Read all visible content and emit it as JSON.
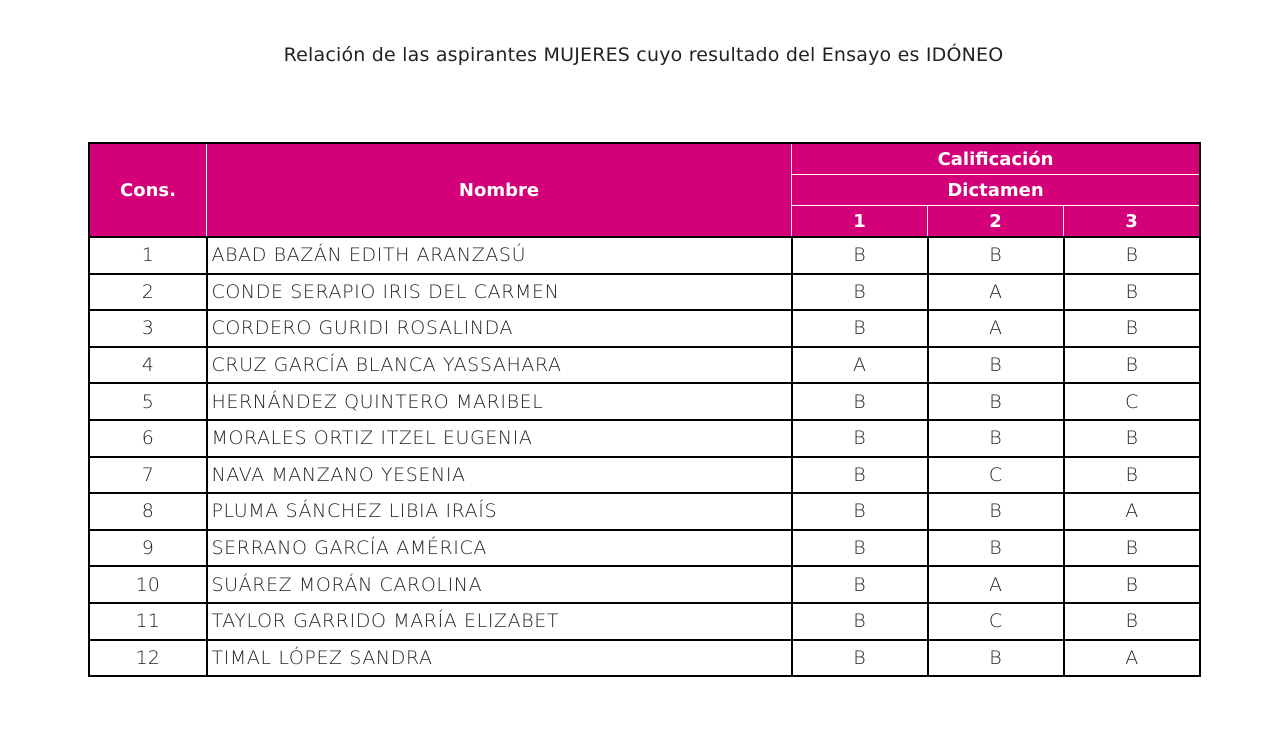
{
  "title": "Relación de las aspirantes MUJERES cuyo resultado del Ensayo es IDÓNEO",
  "header": {
    "cons": "Cons.",
    "nombre": "Nombre",
    "calificacion": "Calificación",
    "dictamen": "Dictamen",
    "cols": [
      "1",
      "2",
      "3"
    ]
  },
  "accent_color": "#d4007a",
  "rows": [
    {
      "cons": "1",
      "nombre": "ABAD BAZÁN EDITH ARANZASÚ",
      "d": [
        "B",
        "B",
        "B"
      ]
    },
    {
      "cons": "2",
      "nombre": "CONDE SERAPIO IRIS DEL CARMEN",
      "d": [
        "B",
        "A",
        "B"
      ]
    },
    {
      "cons": "3",
      "nombre": "CORDERO GURIDI ROSALINDA",
      "d": [
        "B",
        "A",
        "B"
      ]
    },
    {
      "cons": "4",
      "nombre": "CRUZ GARCÍA BLANCA YASSAHARA",
      "d": [
        "A",
        "B",
        "B"
      ]
    },
    {
      "cons": "5",
      "nombre": "HERNÁNDEZ QUINTERO MARIBEL",
      "d": [
        "B",
        "B",
        "C"
      ]
    },
    {
      "cons": "6",
      "nombre": "MORALES ORTIZ ITZEL EUGENIA",
      "d": [
        "B",
        "B",
        "B"
      ]
    },
    {
      "cons": "7",
      "nombre": "NAVA MANZANO YESENIA",
      "d": [
        "B",
        "C",
        "B"
      ]
    },
    {
      "cons": "8",
      "nombre": "PLUMA SÁNCHEZ LIBIA IRAÍS",
      "d": [
        "B",
        "B",
        "A"
      ]
    },
    {
      "cons": "9",
      "nombre": "SERRANO GARCÍA AMÉRICA",
      "d": [
        "B",
        "B",
        "B"
      ]
    },
    {
      "cons": "10",
      "nombre": "SUÁREZ MORÁN CAROLINA",
      "d": [
        "B",
        "A",
        "B"
      ]
    },
    {
      "cons": "11",
      "nombre": "TAYLOR GARRIDO MARÍA ELIZABET",
      "d": [
        "B",
        "C",
        "B"
      ]
    },
    {
      "cons": "12",
      "nombre": "TIMAL LÓPEZ SANDRA",
      "d": [
        "B",
        "B",
        "A"
      ]
    }
  ]
}
